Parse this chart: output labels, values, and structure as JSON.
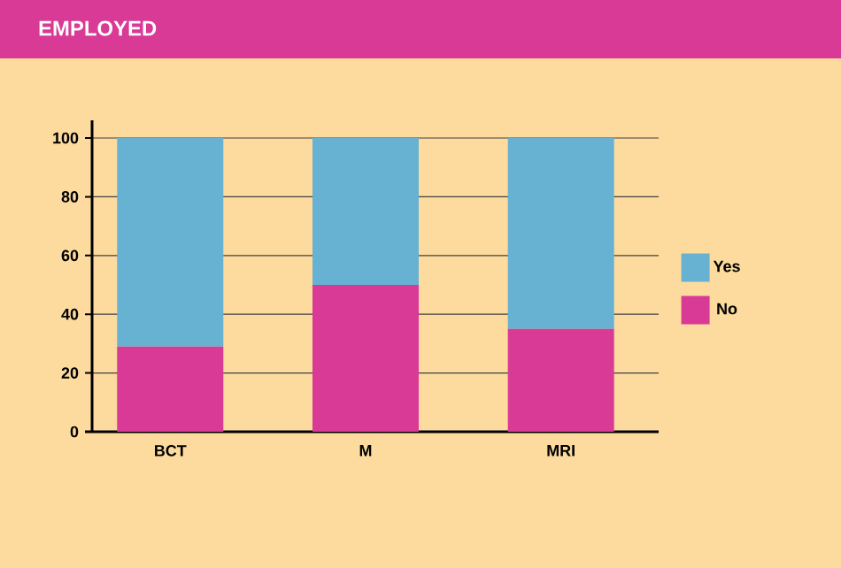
{
  "chart_data": {
    "type": "bar",
    "title": "EMPLOYED",
    "categories": [
      "BCT",
      "M",
      "MRI"
    ],
    "stacked": true,
    "series": [
      {
        "name": "No",
        "color": "#d83a96",
        "values": [
          29,
          50,
          35
        ]
      },
      {
        "name": "Yes",
        "color": "#67b1d3",
        "values": [
          71,
          50,
          65
        ]
      }
    ],
    "ylim": [
      0,
      100
    ],
    "yticks": [
      0,
      20,
      40,
      60,
      80,
      100
    ],
    "grid": "y",
    "legend": "right"
  }
}
